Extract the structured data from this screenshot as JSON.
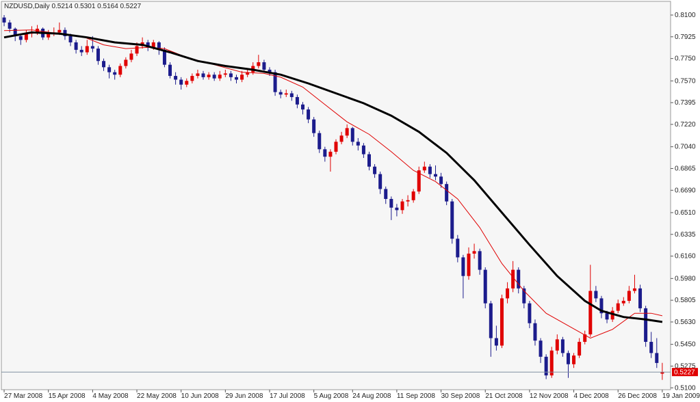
{
  "chart_data": {
    "type": "candlestick",
    "title": "NZDUSD,Daily  0.5214 0.5301 0.5164 0.5227",
    "bull_color": "#e00000",
    "bear_color": "#1c1c8c",
    "xlim": [
      -0.5,
      120.5
    ],
    "xticks": [
      {
        "value": 0,
        "label": "27 Mar 2008"
      },
      {
        "value": 8,
        "label": "15 Apr 2008"
      },
      {
        "value": 16,
        "label": "4 May 2008"
      },
      {
        "value": 24,
        "label": "22 May 2008"
      },
      {
        "value": 32,
        "label": "10 Jun 2008"
      },
      {
        "value": 40,
        "label": "29 Jun 2008"
      },
      {
        "value": 48,
        "label": "17 Jul 2008"
      },
      {
        "value": 56,
        "label": "5 Aug 2008"
      },
      {
        "value": 63,
        "label": "24 Aug 2008"
      },
      {
        "value": 71,
        "label": "11 Sep 2008"
      },
      {
        "value": 79,
        "label": "30 Sep 2008"
      },
      {
        "value": 87,
        "label": "21 Oct 2008"
      },
      {
        "value": 95,
        "label": "12 Nov 2008"
      },
      {
        "value": 103,
        "label": "4 Dec 2008"
      },
      {
        "value": 111,
        "label": "26 Dec 2008"
      },
      {
        "value": 119,
        "label": "19 Jan 2009"
      }
    ],
    "ylim": [
      0.5085,
      0.821
    ],
    "yticks": [
      {
        "value": 0.81,
        "label": "0.8100"
      },
      {
        "value": 0.7925,
        "label": "0.7925"
      },
      {
        "value": 0.775,
        "label": "0.7750"
      },
      {
        "value": 0.757,
        "label": "0.7570"
      },
      {
        "value": 0.7395,
        "label": "0.7395"
      },
      {
        "value": 0.722,
        "label": "0.7220"
      },
      {
        "value": 0.704,
        "label": "0.7040"
      },
      {
        "value": 0.6865,
        "label": "0.6865"
      },
      {
        "value": 0.669,
        "label": "0.6690"
      },
      {
        "value": 0.651,
        "label": "0.6510"
      },
      {
        "value": 0.6335,
        "label": "0.6335"
      },
      {
        "value": 0.616,
        "label": "0.6160"
      },
      {
        "value": 0.598,
        "label": "0.5980"
      },
      {
        "value": 0.5805,
        "label": "0.5805"
      },
      {
        "value": 0.563,
        "label": "0.5630"
      },
      {
        "value": 0.545,
        "label": "0.5450"
      },
      {
        "value": 0.5275,
        "label": "0.5275"
      },
      {
        "value": 0.51,
        "label": "0.5100"
      }
    ],
    "open": [
      0.808,
      0.804,
      0.799,
      0.793,
      0.79,
      0.795,
      0.796,
      0.799,
      0.792,
      0.795,
      0.796,
      0.798,
      0.793,
      0.788,
      0.782,
      0.78,
      0.785,
      0.783,
      0.773,
      0.768,
      0.764,
      0.762,
      0.769,
      0.774,
      0.779,
      0.785,
      0.788,
      0.784,
      0.788,
      0.782,
      0.77,
      0.761,
      0.758,
      0.754,
      0.757,
      0.761,
      0.763,
      0.76,
      0.762,
      0.759,
      0.762,
      0.763,
      0.76,
      0.758,
      0.762,
      0.764,
      0.769,
      0.772,
      0.766,
      0.764,
      0.748,
      0.746,
      0.747,
      0.744,
      0.738,
      0.734,
      0.726,
      0.715,
      0.702,
      0.696,
      0.7,
      0.708,
      0.713,
      0.719,
      0.708,
      0.705,
      0.698,
      0.688,
      0.682,
      0.67,
      0.662,
      0.655,
      0.653,
      0.66,
      0.661,
      0.668,
      0.685,
      0.688,
      0.682,
      0.68,
      0.674,
      0.66,
      0.63,
      0.615,
      0.6,
      0.618,
      0.62,
      0.605,
      0.578,
      0.55,
      0.544,
      0.582,
      0.59,
      0.605,
      0.59,
      0.578,
      0.562,
      0.548,
      0.535,
      0.52,
      0.54,
      0.549,
      0.538,
      0.529,
      0.536,
      0.547,
      0.553,
      0.588,
      0.582,
      0.57,
      0.565,
      0.572,
      0.578,
      0.58,
      0.588,
      0.59,
      0.574,
      0.547,
      0.538,
      0.5214
    ],
    "high": [
      0.81,
      0.806,
      0.8,
      0.795,
      0.798,
      0.801,
      0.802,
      0.8,
      0.798,
      0.8,
      0.804,
      0.8,
      0.795,
      0.79,
      0.785,
      0.79,
      0.793,
      0.785,
      0.775,
      0.77,
      0.766,
      0.771,
      0.776,
      0.782,
      0.788,
      0.792,
      0.79,
      0.79,
      0.789,
      0.784,
      0.772,
      0.764,
      0.76,
      0.759,
      0.763,
      0.766,
      0.765,
      0.764,
      0.764,
      0.765,
      0.766,
      0.765,
      0.762,
      0.765,
      0.767,
      0.772,
      0.778,
      0.774,
      0.768,
      0.766,
      0.75,
      0.75,
      0.749,
      0.746,
      0.74,
      0.736,
      0.728,
      0.717,
      0.704,
      0.702,
      0.71,
      0.716,
      0.722,
      0.72,
      0.711,
      0.707,
      0.7,
      0.69,
      0.684,
      0.672,
      0.664,
      0.658,
      0.662,
      0.665,
      0.67,
      0.688,
      0.692,
      0.69,
      0.689,
      0.683,
      0.676,
      0.662,
      0.633,
      0.617,
      0.623,
      0.626,
      0.622,
      0.607,
      0.58,
      0.56,
      0.585,
      0.595,
      0.612,
      0.607,
      0.592,
      0.58,
      0.565,
      0.55,
      0.537,
      0.543,
      0.553,
      0.551,
      0.54,
      0.538,
      0.55,
      0.556,
      0.609,
      0.592,
      0.584,
      0.572,
      0.575,
      0.581,
      0.583,
      0.592,
      0.601,
      0.593,
      0.576,
      0.555,
      0.55,
      0.5301
    ],
    "low": [
      0.801,
      0.796,
      0.789,
      0.786,
      0.788,
      0.792,
      0.794,
      0.79,
      0.79,
      0.793,
      0.794,
      0.79,
      0.785,
      0.779,
      0.777,
      0.778,
      0.78,
      0.77,
      0.765,
      0.759,
      0.758,
      0.76,
      0.767,
      0.772,
      0.777,
      0.783,
      0.781,
      0.782,
      0.778,
      0.768,
      0.759,
      0.754,
      0.75,
      0.752,
      0.755,
      0.759,
      0.758,
      0.758,
      0.757,
      0.757,
      0.76,
      0.757,
      0.755,
      0.756,
      0.76,
      0.762,
      0.767,
      0.764,
      0.761,
      0.745,
      0.743,
      0.744,
      0.741,
      0.735,
      0.73,
      0.723,
      0.712,
      0.699,
      0.692,
      0.684,
      0.698,
      0.706,
      0.711,
      0.705,
      0.701,
      0.695,
      0.685,
      0.679,
      0.666,
      0.658,
      0.645,
      0.648,
      0.65,
      0.656,
      0.659,
      0.666,
      0.683,
      0.679,
      0.677,
      0.671,
      0.657,
      0.626,
      0.611,
      0.582,
      0.597,
      0.614,
      0.601,
      0.574,
      0.535,
      0.54,
      0.542,
      0.578,
      0.587,
      0.586,
      0.574,
      0.558,
      0.544,
      0.53,
      0.517,
      0.518,
      0.537,
      0.535,
      0.518,
      0.526,
      0.534,
      0.545,
      0.551,
      0.579,
      0.566,
      0.562,
      0.563,
      0.57,
      0.576,
      0.578,
      0.586,
      0.571,
      0.543,
      0.534,
      0.526,
      0.5164
    ],
    "close": [
      0.804,
      0.799,
      0.793,
      0.79,
      0.795,
      0.796,
      0.799,
      0.792,
      0.795,
      0.796,
      0.798,
      0.793,
      0.788,
      0.782,
      0.78,
      0.785,
      0.783,
      0.773,
      0.768,
      0.764,
      0.762,
      0.769,
      0.774,
      0.779,
      0.785,
      0.788,
      0.784,
      0.788,
      0.782,
      0.77,
      0.761,
      0.758,
      0.754,
      0.757,
      0.761,
      0.763,
      0.76,
      0.762,
      0.759,
      0.762,
      0.763,
      0.76,
      0.758,
      0.762,
      0.764,
      0.769,
      0.772,
      0.766,
      0.764,
      0.748,
      0.746,
      0.747,
      0.744,
      0.738,
      0.734,
      0.726,
      0.715,
      0.702,
      0.696,
      0.7,
      0.708,
      0.713,
      0.719,
      0.708,
      0.705,
      0.698,
      0.688,
      0.682,
      0.67,
      0.662,
      0.655,
      0.653,
      0.66,
      0.661,
      0.668,
      0.685,
      0.688,
      0.682,
      0.68,
      0.674,
      0.66,
      0.63,
      0.615,
      0.6,
      0.618,
      0.62,
      0.605,
      0.578,
      0.55,
      0.544,
      0.582,
      0.59,
      0.605,
      0.59,
      0.578,
      0.562,
      0.548,
      0.535,
      0.52,
      0.54,
      0.549,
      0.538,
      0.529,
      0.536,
      0.547,
      0.553,
      0.588,
      0.582,
      0.57,
      0.565,
      0.572,
      0.578,
      0.58,
      0.588,
      0.59,
      0.574,
      0.547,
      0.538,
      0.53,
      0.5227
    ],
    "lines": [
      {
        "color": "#e00000",
        "x": [
          0,
          5,
          10,
          14,
          18,
          22,
          26,
          29,
          33,
          38,
          43,
          47,
          50,
          54,
          58,
          62,
          66,
          70,
          74,
          78,
          82,
          86,
          90,
          94,
          98,
          102,
          106,
          110,
          114,
          117,
          119
        ],
        "values": [
          0.7975,
          0.798,
          0.795,
          0.793,
          0.786,
          0.783,
          0.784,
          0.783,
          0.776,
          0.77,
          0.764,
          0.763,
          0.76,
          0.752,
          0.738,
          0.724,
          0.714,
          0.7,
          0.685,
          0.676,
          0.662,
          0.639,
          0.61,
          0.588,
          0.57,
          0.56,
          0.55,
          0.557,
          0.57,
          0.57,
          0.568
        ]
      },
      {
        "color": "#000000",
        "x": [
          0,
          5,
          10,
          15,
          20,
          25,
          30,
          35,
          40,
          45,
          50,
          55,
          60,
          65,
          70,
          75,
          80,
          85,
          90,
          95,
          100,
          105,
          108,
          112,
          116,
          119
        ],
        "values": [
          0.792,
          0.796,
          0.795,
          0.792,
          0.788,
          0.786,
          0.78,
          0.773,
          0.769,
          0.766,
          0.762,
          0.755,
          0.747,
          0.739,
          0.729,
          0.716,
          0.699,
          0.677,
          0.651,
          0.625,
          0.6,
          0.58,
          0.572,
          0.567,
          0.565,
          0.563
        ]
      }
    ]
  }
}
